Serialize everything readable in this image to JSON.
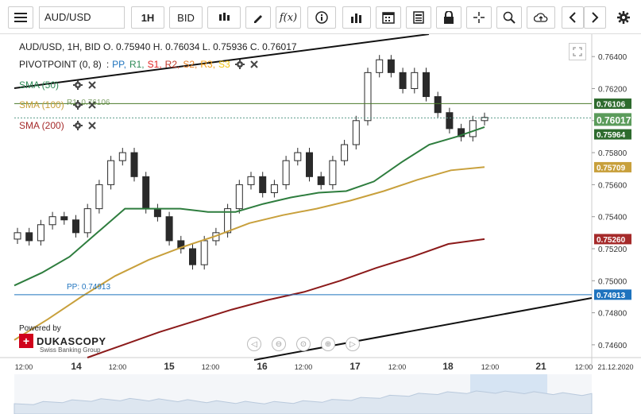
{
  "toolbar": {
    "symbol": "AUD/USD",
    "timeframe": "1H",
    "price_side": "BID",
    "fx_label": "f(x)"
  },
  "ohlc_line": "AUD/USD, 1H, BID   O. 0.75940 H. 0.76034 L. 0.75936 C. 0.76017",
  "indicators": [
    {
      "name": "PIVOTPOINT (0, 8)",
      "color": "#222222"
    },
    {
      "name": "SMA (50)",
      "color": "#2e8b57"
    },
    {
      "name": "SMA (100)",
      "color": "#c8a03c"
    },
    {
      "name": "SMA (200)",
      "color": "#a52a2a"
    }
  ],
  "pivot_levels": [
    {
      "label": "PP",
      "color": "#1e73be"
    },
    {
      "label": "R1",
      "color": "#2e8b57"
    },
    {
      "label": "S1",
      "color": "#e02424"
    },
    {
      "label": "R2",
      "color": "#c0392b"
    },
    {
      "label": "S2",
      "color": "#e67e22"
    },
    {
      "label": "R3",
      "color": "#f39c12"
    },
    {
      "label": "S3",
      "color": "#f1c40f"
    }
  ],
  "pp_label": "PP: 0.74913",
  "r1_label": "R1: 0.76106",
  "branding": {
    "powered": "Powered by",
    "name": "DUKASCOPY",
    "sub": "Swiss Banking Group"
  },
  "chart_data": {
    "type": "line",
    "title": "AUD/USD, 1H, BID",
    "ylim": [
      0.7453,
      0.7653
    ],
    "x_ticks": [
      "12:00",
      "14",
      "12:00",
      "15",
      "12:00",
      "16",
      "12:00",
      "17",
      "12:00",
      "18",
      "12:00",
      "21",
      "12:00",
      "21.12.2020"
    ],
    "y_ticks": [
      "0.76400",
      "0.76200",
      "0.76000",
      "0.75800",
      "0.75600",
      "0.75400",
      "0.75200",
      "0.75000",
      "0.74800",
      "0.74600"
    ],
    "price_labels": [
      {
        "value": "0.76106",
        "color": "#2e6b2e"
      },
      {
        "value": "0.76017",
        "color": "#5b9b5b"
      },
      {
        "value": "0.75964",
        "color": "#2e6b2e"
      },
      {
        "value": "0.75709",
        "color": "#c8a03c"
      },
      {
        "value": "0.75260",
        "color": "#a52a2a"
      },
      {
        "value": "0.74913",
        "color": "#1e73be"
      }
    ],
    "close_series": [
      0.753,
      0.7525,
      0.7535,
      0.754,
      0.7538,
      0.753,
      0.7545,
      0.756,
      0.7575,
      0.758,
      0.7565,
      0.7545,
      0.754,
      0.7525,
      0.752,
      0.751,
      0.7525,
      0.753,
      0.7545,
      0.756,
      0.7565,
      0.7555,
      0.756,
      0.7575,
      0.758,
      0.7565,
      0.756,
      0.7575,
      0.7585,
      0.76,
      0.763,
      0.7638,
      0.763,
      0.762,
      0.763,
      0.7615,
      0.7605,
      0.7595,
      0.759,
      0.76,
      0.7602
    ],
    "series": [
      {
        "name": "SMA (50)",
        "color": "#2e7d3e",
        "values": [
          0.7497,
          0.7505,
          0.7515,
          0.753,
          0.7545,
          0.7545,
          0.7545,
          0.7543,
          0.7543,
          0.7548,
          0.7552,
          0.7555,
          0.7556,
          0.7562,
          0.7574,
          0.7585,
          0.759,
          0.7596
        ]
      },
      {
        "name": "SMA (100)",
        "color": "#c8a03c",
        "values": [
          0.7463,
          0.7476,
          0.749,
          0.7503,
          0.7513,
          0.7521,
          0.7528,
          0.7536,
          0.7541,
          0.7545,
          0.755,
          0.7556,
          0.7563,
          0.7569,
          0.7571
        ]
      },
      {
        "name": "SMA (200)",
        "color": "#8b1a1a",
        "values": [
          0.7452,
          0.746,
          0.7468,
          0.7475,
          0.7482,
          0.7488,
          0.7493,
          0.75,
          0.7508,
          0.7515,
          0.7523,
          0.7526
        ]
      }
    ],
    "horizontal_lines": [
      {
        "name": "R1",
        "value": 0.76106,
        "color": "#4a7a2a"
      },
      {
        "name": "close",
        "value": 0.76017,
        "color": "#5b9b8b"
      },
      {
        "name": "PP",
        "value": 0.74913,
        "color": "#1e73be"
      }
    ]
  }
}
